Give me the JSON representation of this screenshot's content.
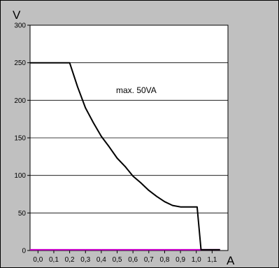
{
  "chart_data": {
    "type": "line",
    "annotation": "max. 50VA",
    "x_unit": "A",
    "y_unit": "V",
    "xlim": [
      -0.05,
      1.2
    ],
    "ylim": [
      0,
      300
    ],
    "x_ticks": [
      0.0,
      0.1,
      0.2,
      0.3,
      0.4,
      0.5,
      0.6,
      0.7,
      0.8,
      0.9,
      1.0,
      1.1
    ],
    "x_tick_labels": [
      "0,0",
      "0,1",
      "0,2",
      "0,3",
      "0,4",
      "0,5",
      "0,6",
      "0,7",
      "0,8",
      "0,9",
      "1,0",
      "1,1"
    ],
    "y_ticks": [
      0,
      50,
      100,
      150,
      200,
      250,
      300
    ],
    "y_tick_labels": [
      "0",
      "50",
      "100",
      "150",
      "200",
      "250",
      "300"
    ],
    "grid": "horizontal",
    "colors": {
      "plot_background": "#ffffff",
      "outer_background": "#c0c0c0",
      "grid": "#000000",
      "series_voltage": "#000000",
      "series_baseline": "#cc00cc"
    },
    "series": [
      {
        "values_x": [
          -0.05,
          0.0,
          0.05,
          0.1,
          0.15,
          0.2,
          0.25,
          0.3,
          0.35,
          0.4,
          0.45,
          0.5,
          0.55,
          0.6,
          0.65,
          0.7,
          0.75,
          0.8,
          0.85,
          0.9,
          0.95,
          1.0,
          1.005,
          1.03,
          1.05,
          1.1,
          1.15
        ],
        "values_y": [
          250,
          250,
          250,
          250,
          250,
          250,
          218,
          190,
          170,
          152,
          138,
          123,
          112,
          99,
          90,
          80,
          72,
          65,
          60,
          58,
          58,
          58,
          58,
          1,
          1,
          1,
          1
        ]
      },
      {
        "values_x": [
          -0.05,
          1.15
        ],
        "values_y": [
          1,
          1
        ]
      }
    ]
  }
}
